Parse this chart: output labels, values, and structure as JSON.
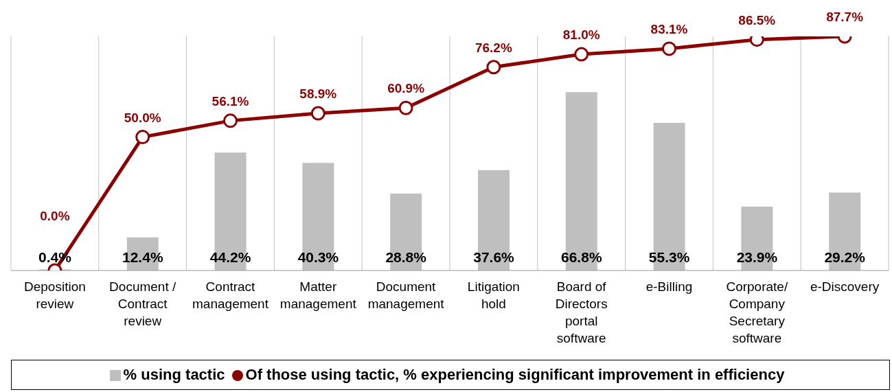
{
  "chart_data": {
    "type": "bar",
    "categories": [
      "Deposition\nreview",
      "Document /\nContract\nreview",
      "Contract\nmanagement",
      "Matter\nmanagement",
      "Document\nmanagement",
      "Litigation\nhold",
      "Board of\nDirectors\nportal\nsoftware",
      "e-Billing",
      "Corporate/\nCompany\nSecretary\nsoftware",
      "e-Discovery"
    ],
    "series": [
      {
        "name": "% using tactic",
        "color": "#bfbfbf",
        "values": [
          0.4,
          12.4,
          44.2,
          40.3,
          28.8,
          37.6,
          66.8,
          55.3,
          23.9,
          29.2
        ],
        "value_labels": [
          "0.4%",
          "12.4%",
          "44.2%",
          "40.3%",
          "28.8%",
          "37.6%",
          "66.8%",
          "55.3%",
          "23.9%",
          "29.2%"
        ]
      },
      {
        "name": "Of those using tactic, % experiencing significant improvement in efficiency",
        "type": "line",
        "color": "#8b0000",
        "values": [
          0.0,
          50.0,
          56.1,
          58.9,
          60.9,
          76.2,
          81.0,
          83.1,
          86.5,
          87.7
        ],
        "value_labels": [
          "0.0%",
          "50.0%",
          "56.1%",
          "58.9%",
          "60.9%",
          "76.2%",
          "81.0%",
          "83.1%",
          "86.5%",
          "87.7%"
        ]
      }
    ],
    "grid": "x",
    "legend": "bottom",
    "marker": "circle",
    "line_style": "solid",
    "tick_labels": "x"
  }
}
